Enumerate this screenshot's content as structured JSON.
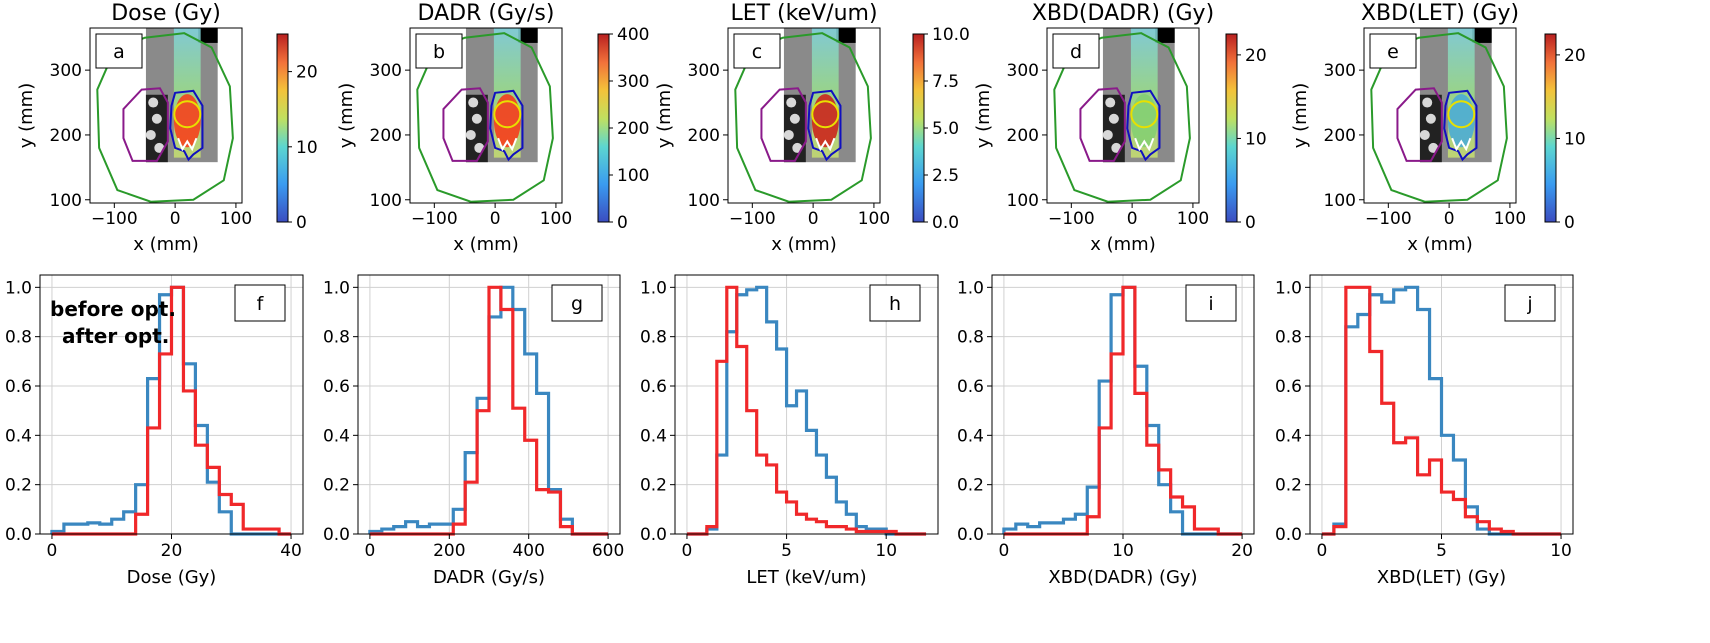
{
  "figure": {
    "legend_before": "before opt.",
    "legend_after": "after opt."
  },
  "colors": {
    "before": "#3a87c0",
    "after": "#f0282a",
    "legend_before": "#1f5fa8",
    "legend_after": "#ff0000",
    "body_contour": "#2a9a2a",
    "lung_contour": "#8a1a8a",
    "target_contour": "#1010c0",
    "ring_contour": "#e8e000",
    "spine_contour": "#ffffff"
  },
  "chart_data": [
    {
      "type": "heatmap",
      "panel": "a",
      "title": "Dose (Gy)",
      "xlabel": "x (mm)",
      "ylabel": "y (mm)",
      "xlim": [
        -140,
        110
      ],
      "ylim": [
        95,
        365
      ],
      "xticks": [
        "-100",
        "0",
        "100"
      ],
      "xtick_values": [
        -100,
        0,
        100
      ],
      "yticks": [
        "100",
        "200",
        "300"
      ],
      "ytick_values": [
        100,
        200,
        300
      ],
      "colorbar": {
        "range": [
          0,
          25
        ],
        "ticks": [
          "0",
          "10",
          "20"
        ],
        "tick_values": [
          0,
          10,
          20
        ],
        "colormap": "turbo"
      },
      "map_hot": "#ff3010"
    },
    {
      "type": "heatmap",
      "panel": "b",
      "title": "DADR (Gy/s)",
      "xlabel": "x (mm)",
      "ylabel": "y (mm)",
      "xlim": [
        -140,
        110
      ],
      "ylim": [
        95,
        365
      ],
      "xticks": [
        "-100",
        "0",
        "100"
      ],
      "xtick_values": [
        -100,
        0,
        100
      ],
      "yticks": [
        "100",
        "200",
        "300"
      ],
      "ytick_values": [
        100,
        200,
        300
      ],
      "colorbar": {
        "range": [
          0,
          400
        ],
        "ticks": [
          "0",
          "100",
          "200",
          "300",
          "400"
        ],
        "tick_values": [
          0,
          100,
          200,
          300,
          400
        ],
        "colormap": "turbo"
      },
      "map_hot": "#ff2a10"
    },
    {
      "type": "heatmap",
      "panel": "c",
      "title": "LET (keV/um)",
      "xlabel": "x (mm)",
      "ylabel": "y (mm)",
      "xlim": [
        -140,
        110
      ],
      "ylim": [
        95,
        365
      ],
      "xticks": [
        "-100",
        "0",
        "100"
      ],
      "xtick_values": [
        -100,
        0,
        100
      ],
      "yticks": [
        "100",
        "200",
        "300"
      ],
      "ytick_values": [
        100,
        200,
        300
      ],
      "colorbar": {
        "range": [
          0,
          10
        ],
        "ticks": [
          "0.0",
          "2.5",
          "5.0",
          "7.5",
          "10.0"
        ],
        "tick_values": [
          0,
          2.5,
          5,
          7.5,
          10
        ],
        "colormap": "turbo"
      },
      "map_hot": "#d01010"
    },
    {
      "type": "heatmap",
      "panel": "d",
      "title": "XBD(DADR) (Gy)",
      "xlabel": "x (mm)",
      "ylabel": "y (mm)",
      "xlim": [
        -140,
        110
      ],
      "ylim": [
        95,
        365
      ],
      "xticks": [
        "-100",
        "0",
        "100"
      ],
      "xtick_values": [
        -100,
        0,
        100
      ],
      "yticks": [
        "100",
        "200",
        "300"
      ],
      "ytick_values": [
        100,
        200,
        300
      ],
      "colorbar": {
        "range": [
          0,
          22.5
        ],
        "ticks": [
          "0",
          "10",
          "20"
        ],
        "tick_values": [
          0,
          10,
          20
        ],
        "colormap": "turbo"
      },
      "map_hot": "#80d070"
    },
    {
      "type": "heatmap",
      "panel": "e",
      "title": "XBD(LET) (Gy)",
      "xlabel": "x (mm)",
      "ylabel": "y (mm)",
      "xlim": [
        -140,
        110
      ],
      "ylim": [
        95,
        365
      ],
      "xticks": [
        "-100",
        "0",
        "100"
      ],
      "xtick_values": [
        -100,
        0,
        100
      ],
      "yticks": [
        "100",
        "200",
        "300"
      ],
      "ytick_values": [
        100,
        200,
        300
      ],
      "colorbar": {
        "range": [
          0,
          22.5
        ],
        "ticks": [
          "0",
          "10",
          "20"
        ],
        "tick_values": [
          0,
          10,
          20
        ],
        "colormap": "turbo"
      },
      "map_hot": "#40a8e0"
    },
    {
      "type": "line",
      "panel": "f",
      "xlabel": "Dose (Gy)",
      "xlim": [
        -2,
        42
      ],
      "ylim": [
        0,
        1.05
      ],
      "xticks": [
        "0",
        "20",
        "40"
      ],
      "xtick_values": [
        0,
        20,
        40
      ],
      "yticks": [
        "0.0",
        "0.2",
        "0.4",
        "0.6",
        "0.8",
        "1.0"
      ],
      "ytick_values": [
        0,
        0.2,
        0.4,
        0.6,
        0.8,
        1.0
      ],
      "grid": true,
      "legend": "top-left",
      "series": [
        {
          "name": "before opt.",
          "edges": [
            0,
            2,
            4,
            6,
            8,
            10,
            12,
            14,
            16,
            18,
            20,
            22,
            24,
            26,
            28,
            30,
            32,
            34,
            36,
            38,
            40
          ],
          "values": [
            0.01,
            0.04,
            0.04,
            0.045,
            0.04,
            0.06,
            0.09,
            0.2,
            0.63,
            0.97,
            1.0,
            0.69,
            0.44,
            0.21,
            0.09,
            0.0,
            0,
            0,
            0,
            0
          ]
        },
        {
          "name": "after opt.",
          "edges": [
            0,
            2,
            4,
            6,
            8,
            10,
            12,
            14,
            16,
            18,
            20,
            22,
            24,
            26,
            28,
            30,
            32,
            34,
            36,
            38,
            40
          ],
          "values": [
            0,
            0,
            0,
            0,
            0,
            0,
            0,
            0.08,
            0.43,
            0.73,
            1.0,
            0.58,
            0.36,
            0.27,
            0.16,
            0.12,
            0.02,
            0.02,
            0.02,
            0
          ]
        }
      ]
    },
    {
      "type": "line",
      "panel": "g",
      "xlabel": "DADR (Gy/s)",
      "xlim": [
        -30,
        630
      ],
      "ylim": [
        0,
        1.05
      ],
      "xticks": [
        "0",
        "200",
        "400",
        "600"
      ],
      "xtick_values": [
        0,
        200,
        400,
        600
      ],
      "yticks": [
        "0.0",
        "0.2",
        "0.4",
        "0.6",
        "0.8",
        "1.0"
      ],
      "ytick_values": [
        0,
        0.2,
        0.4,
        0.6,
        0.8,
        1.0
      ],
      "grid": true,
      "series": [
        {
          "name": "before opt.",
          "edges": [
            0,
            30,
            60,
            90,
            120,
            150,
            180,
            210,
            240,
            270,
            300,
            330,
            360,
            390,
            420,
            450,
            480,
            510,
            540,
            570,
            600
          ],
          "values": [
            0.01,
            0.02,
            0.03,
            0.05,
            0.03,
            0.04,
            0.04,
            0.1,
            0.33,
            0.55,
            0.88,
            1.0,
            0.91,
            0.73,
            0.57,
            0.18,
            0.06,
            0,
            0,
            0
          ]
        },
        {
          "name": "after opt.",
          "edges": [
            0,
            30,
            60,
            90,
            120,
            150,
            180,
            210,
            240,
            270,
            300,
            330,
            360,
            390,
            420,
            450,
            480,
            510,
            540,
            570,
            600
          ],
          "values": [
            0,
            0,
            0,
            0,
            0,
            0,
            0,
            0.04,
            0.21,
            0.5,
            1.0,
            0.91,
            0.51,
            0.38,
            0.18,
            0.17,
            0.03,
            0,
            0,
            0
          ]
        }
      ]
    },
    {
      "type": "line",
      "panel": "h",
      "xlabel": "LET (keV/um)",
      "xlim": [
        -0.6,
        12.6
      ],
      "ylim": [
        0,
        1.05
      ],
      "xticks": [
        "0",
        "5",
        "10"
      ],
      "xtick_values": [
        0,
        5,
        10
      ],
      "yticks": [
        "0.0",
        "0.2",
        "0.4",
        "0.6",
        "0.8",
        "1.0"
      ],
      "ytick_values": [
        0,
        0.2,
        0.4,
        0.6,
        0.8,
        1.0
      ],
      "grid": true,
      "series": [
        {
          "name": "before opt.",
          "edges": [
            0,
            0.5,
            1,
            1.5,
            2,
            2.5,
            3,
            3.5,
            4,
            4.5,
            5,
            5.5,
            6,
            6.5,
            7,
            7.5,
            8,
            8.5,
            9,
            9.5,
            10,
            10.5,
            11,
            11.5,
            12
          ],
          "values": [
            0,
            0,
            0.02,
            0.32,
            0.82,
            0.97,
            0.99,
            1.0,
            0.86,
            0.75,
            0.52,
            0.58,
            0.42,
            0.32,
            0.23,
            0.13,
            0.08,
            0.03,
            0.02,
            0.02,
            0,
            0,
            0,
            0
          ]
        },
        {
          "name": "after opt.",
          "edges": [
            0,
            0.5,
            1,
            1.5,
            2,
            2.5,
            3,
            3.5,
            4,
            4.5,
            5,
            5.5,
            6,
            6.5,
            7,
            7.5,
            8,
            8.5,
            9,
            9.5,
            10,
            10.5,
            11,
            11.5,
            12
          ],
          "values": [
            0,
            0,
            0.03,
            0.7,
            1.0,
            0.76,
            0.5,
            0.32,
            0.28,
            0.17,
            0.13,
            0.08,
            0.06,
            0.05,
            0.03,
            0.03,
            0.02,
            0.01,
            0.01,
            0.01,
            0.01,
            0,
            0,
            0
          ]
        }
      ]
    },
    {
      "type": "line",
      "panel": "i",
      "xlabel": "XBD(DADR) (Gy)",
      "xlim": [
        -1,
        21
      ],
      "ylim": [
        0,
        1.05
      ],
      "xticks": [
        "0",
        "10",
        "20"
      ],
      "xtick_values": [
        0,
        10,
        20
      ],
      "yticks": [
        "0.0",
        "0.2",
        "0.4",
        "0.6",
        "0.8",
        "1.0"
      ],
      "ytick_values": [
        0,
        0.2,
        0.4,
        0.6,
        0.8,
        1.0
      ],
      "grid": true,
      "series": [
        {
          "name": "before opt.",
          "edges": [
            0,
            1,
            2,
            3,
            4,
            5,
            6,
            7,
            8,
            9,
            10,
            11,
            12,
            13,
            14,
            15,
            16,
            17,
            18,
            19,
            20
          ],
          "values": [
            0.02,
            0.04,
            0.03,
            0.045,
            0.045,
            0.06,
            0.08,
            0.19,
            0.62,
            0.97,
            1.0,
            0.68,
            0.44,
            0.2,
            0.09,
            0,
            0,
            0,
            0,
            0
          ]
        },
        {
          "name": "after opt.",
          "edges": [
            0,
            1,
            2,
            3,
            4,
            5,
            6,
            7,
            8,
            9,
            10,
            11,
            12,
            13,
            14,
            15,
            16,
            17,
            18,
            19,
            20
          ],
          "values": [
            0,
            0,
            0,
            0,
            0,
            0,
            0,
            0.07,
            0.43,
            0.73,
            1.0,
            0.57,
            0.36,
            0.26,
            0.15,
            0.11,
            0.02,
            0.02,
            0,
            0
          ]
        }
      ]
    },
    {
      "type": "line",
      "panel": "j",
      "xlabel": "XBD(LET) (Gy)",
      "xlim": [
        -0.5,
        10.5
      ],
      "ylim": [
        0,
        1.05
      ],
      "xticks": [
        "0",
        "5",
        "10"
      ],
      "xtick_values": [
        0,
        5,
        10
      ],
      "yticks": [
        "0.0",
        "0.2",
        "0.4",
        "0.6",
        "0.8",
        "1.0"
      ],
      "ytick_values": [
        0,
        0.2,
        0.4,
        0.6,
        0.8,
        1.0
      ],
      "grid": true,
      "series": [
        {
          "name": "before opt.",
          "edges": [
            0,
            0.5,
            1,
            1.5,
            2,
            2.5,
            3,
            3.5,
            4,
            4.5,
            5,
            5.5,
            6,
            6.5,
            7,
            7.5,
            8,
            8.5,
            9,
            9.5,
            10
          ],
          "values": [
            0,
            0.04,
            0.84,
            0.89,
            0.97,
            0.94,
            0.99,
            1.0,
            0.91,
            0.63,
            0.4,
            0.3,
            0.11,
            0.02,
            0,
            0,
            0,
            0,
            0,
            0
          ]
        },
        {
          "name": "after opt.",
          "edges": [
            0,
            0.5,
            1,
            1.5,
            2,
            2.5,
            3,
            3.5,
            4,
            4.5,
            5,
            5.5,
            6,
            6.5,
            7,
            7.5,
            8,
            8.5,
            9,
            9.5,
            10
          ],
          "values": [
            0,
            0.03,
            1.0,
            1.0,
            0.74,
            0.53,
            0.37,
            0.39,
            0.24,
            0.3,
            0.17,
            0.14,
            0.07,
            0.05,
            0.02,
            0.01,
            0,
            0,
            0,
            0
          ]
        }
      ]
    }
  ]
}
